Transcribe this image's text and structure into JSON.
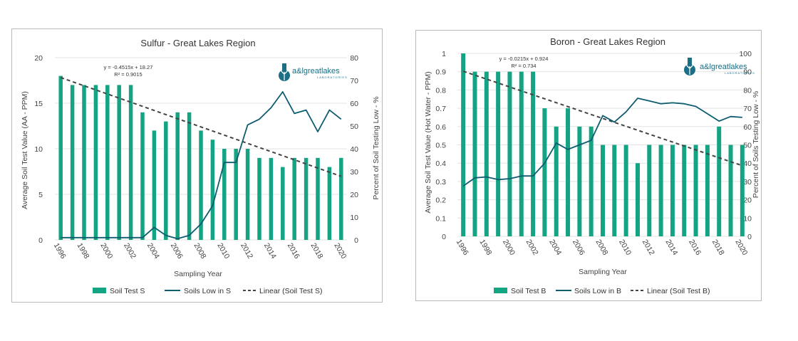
{
  "colors": {
    "bar": "#14a383",
    "low_line": "#0e5c6f",
    "trend": "#444444",
    "gridline": "#e3e3e3",
    "logo": "#1b6e83"
  },
  "logo": {
    "icon": "flask-plant-icon",
    "brand": "a&lgreatlakes",
    "sub": "LABORATORIES"
  },
  "chart_data": [
    {
      "type": "bar",
      "title": "Sulfur - Great Lakes Region",
      "xlabel": "Sampling Year",
      "ylabel": "Average Soil Test Value (AA - PPM)",
      "y2label": "Percent of Soil Testing Low - %",
      "ylim": [
        0,
        20
      ],
      "y2lim": [
        0,
        80
      ],
      "yticks": [
        "0",
        "5",
        "10",
        "15",
        "20"
      ],
      "y2ticks": [
        "0",
        "10",
        "20",
        "30",
        "40",
        "50",
        "60",
        "70",
        "80"
      ],
      "categories": [
        "1996",
        "1997",
        "1998",
        "1999",
        "2000",
        "2001",
        "2002",
        "2003",
        "2004",
        "2005",
        "2006",
        "2007",
        "2008",
        "2009",
        "2010",
        "2011",
        "2012",
        "2013",
        "2014",
        "2015",
        "2016",
        "2017",
        "2018",
        "2019",
        "2020"
      ],
      "xticks": [
        "1996",
        "1998",
        "2000",
        "2002",
        "2004",
        "2006",
        "2008",
        "2010",
        "2012",
        "2014",
        "2016",
        "2018",
        "2020"
      ],
      "series": [
        {
          "name": "Soil Test S",
          "kind": "bar",
          "axis": "left",
          "values": [
            18,
            17,
            17,
            17,
            17,
            17,
            17,
            14,
            12,
            13,
            14,
            14,
            12,
            11,
            10,
            10,
            10,
            9,
            9,
            8,
            9,
            9,
            9,
            8,
            9
          ]
        },
        {
          "name": "Soils Low in S",
          "kind": "line",
          "axis": "right",
          "values": [
            1,
            1,
            1,
            1,
            1,
            1,
            1,
            1,
            5.5,
            2,
            0.5,
            2,
            7,
            15,
            34,
            34,
            50.5,
            53,
            58,
            65,
            55.5,
            57,
            47.5,
            57,
            53
          ]
        },
        {
          "name": "Linear (Soil Test S)",
          "kind": "trend",
          "axis": "left",
          "slope": -0.4515,
          "intercept": 18.27
        }
      ],
      "equation": "y = -0.4515x + 18.27",
      "r2": "R² = 0.9015",
      "legend": [
        "Soil Test S",
        "Soils Low in S",
        "Linear (Soil Test S)"
      ]
    },
    {
      "type": "bar",
      "title": "Boron - Great Lakes Region",
      "xlabel": "Sampling Year",
      "ylabel": "Average Soil Test Value (Hot Water - PPM)",
      "y2label": "Percent of Soils Testing Low - %",
      "ylim": [
        0,
        1
      ],
      "y2lim": [
        0,
        100
      ],
      "yticks": [
        "0",
        "0.1",
        "0.2",
        "0.3",
        "0.4",
        "0.5",
        "0.6",
        "0.7",
        "0.8",
        "0.9",
        "1"
      ],
      "y2ticks": [
        "0",
        "10",
        "20",
        "30",
        "40",
        "50",
        "60",
        "70",
        "80",
        "90",
        "100"
      ],
      "categories": [
        "1996",
        "1997",
        "1998",
        "1999",
        "2000",
        "2001",
        "2002",
        "2003",
        "2004",
        "2005",
        "2006",
        "2007",
        "2008",
        "2009",
        "2010",
        "2011",
        "2012",
        "2013",
        "2014",
        "2015",
        "2016",
        "2017",
        "2018",
        "2019",
        "2020"
      ],
      "xticks": [
        "1996",
        "1998",
        "2000",
        "2002",
        "2004",
        "2006",
        "2008",
        "2010",
        "2012",
        "2014",
        "2016",
        "2018",
        "2020"
      ],
      "series": [
        {
          "name": "Soil Test B",
          "kind": "bar",
          "axis": "left",
          "values": [
            1,
            0.9,
            0.9,
            0.9,
            0.9,
            0.9,
            0.9,
            0.7,
            0.6,
            0.7,
            0.6,
            0.6,
            0.5,
            0.5,
            0.5,
            0.4,
            0.5,
            0.5,
            0.5,
            0.5,
            0.5,
            0.5,
            0.6,
            0.5,
            0.5
          ]
        },
        {
          "name": "Soils Low in B",
          "kind": "line",
          "axis": "right",
          "values": [
            27.5,
            32,
            32.5,
            31,
            31.5,
            33,
            33,
            40,
            51,
            47.5,
            50,
            52.5,
            66,
            62.5,
            68,
            75.5,
            74,
            72.5,
            73,
            72.5,
            71,
            67,
            63,
            65.5,
            65
          ]
        },
        {
          "name": "Linear (Soil Test B)",
          "kind": "trend",
          "axis": "left",
          "slope": -0.0215,
          "intercept": 0.924
        }
      ],
      "equation": "y = -0.0215x + 0.924",
      "r2": "R² = 0.734",
      "legend": [
        "Soil Test B",
        "Soils Low in B",
        "Linear (Soil Test B)"
      ]
    }
  ]
}
